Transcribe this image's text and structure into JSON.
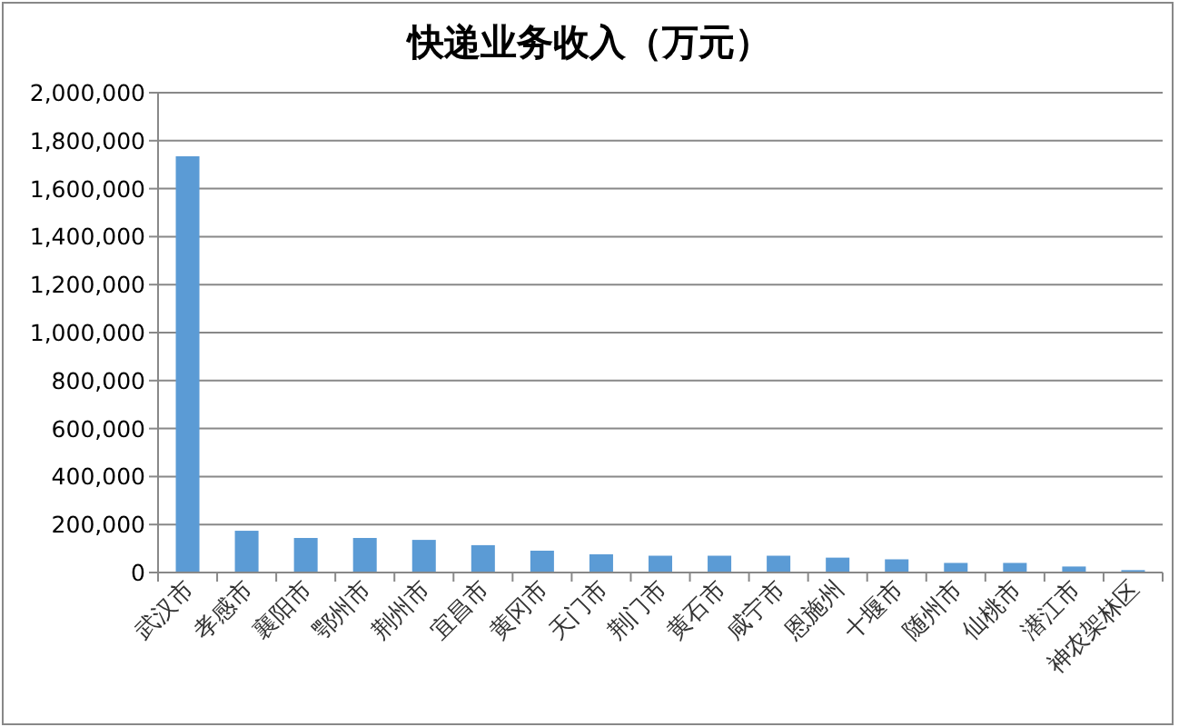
{
  "chart_data": {
    "type": "bar",
    "title": "快递业务收入（万元）",
    "categories": [
      "武汉市",
      "孝感市",
      "襄阳市",
      "鄂州市",
      "荆州市",
      "宜昌市",
      "黄冈市",
      "天门市",
      "荆门市",
      "黄石市",
      "咸宁市",
      "恩施州",
      "十堰市",
      "随州市",
      "仙桃市",
      "潜江市",
      "神农架林区"
    ],
    "values": [
      1735000,
      174000,
      144000,
      144000,
      136000,
      114000,
      91000,
      76000,
      70000,
      70000,
      70000,
      62000,
      55000,
      40000,
      40000,
      25000,
      10000
    ],
    "color": "#5b9bd5",
    "ylim": [
      0,
      2000000
    ],
    "yticks": [
      {
        "value": 0,
        "label": "0"
      },
      {
        "value": 200000,
        "label": "200,000"
      },
      {
        "value": 400000,
        "label": "400,000"
      },
      {
        "value": 600000,
        "label": "600,000"
      },
      {
        "value": 800000,
        "label": "800,000"
      },
      {
        "value": 1000000,
        "label": "1,000,000"
      },
      {
        "value": 1200000,
        "label": "1,200,000"
      },
      {
        "value": 1400000,
        "label": "1,400,000"
      },
      {
        "value": 1600000,
        "label": "1,600,000"
      },
      {
        "value": 1800000,
        "label": "1,800,000"
      },
      {
        "value": 2000000,
        "label": "2,000,000"
      }
    ],
    "grid": "y"
  }
}
